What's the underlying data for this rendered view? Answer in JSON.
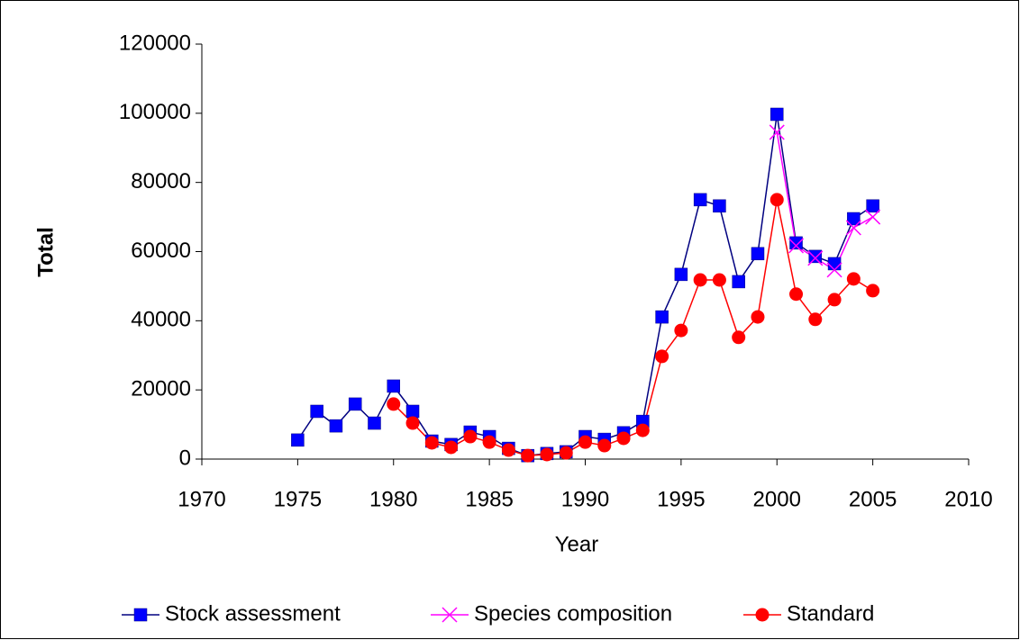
{
  "chart_data": {
    "type": "line",
    "x_label": "Year",
    "y_label": "Total",
    "x": [
      1975,
      1976,
      1977,
      1978,
      1979,
      1980,
      1981,
      1982,
      1983,
      1984,
      1985,
      1986,
      1987,
      1988,
      1989,
      1990,
      1991,
      1992,
      1993,
      1994,
      1995,
      1996,
      1997,
      1998,
      1999,
      2000,
      2001,
      2002,
      2003,
      2004,
      2005
    ],
    "series": [
      {
        "name": "Stock assessment",
        "color": "#0000ff",
        "line_color": "#000080",
        "marker": "square",
        "values": [
          5500,
          13800,
          9600,
          15900,
          10400,
          21100,
          13800,
          5200,
          4200,
          7800,
          6500,
          3100,
          1000,
          1600,
          2100,
          6500,
          5700,
          7600,
          10900,
          41100,
          53400,
          75000,
          73200,
          51300,
          59400,
          99700,
          62500,
          58600,
          56500,
          69500,
          73200
        ]
      },
      {
        "name": "Species composition",
        "color": "#ff00ff",
        "line_color": "#ff00ff",
        "marker": "x",
        "values": [
          null,
          null,
          null,
          null,
          null,
          null,
          null,
          null,
          null,
          null,
          null,
          null,
          null,
          null,
          null,
          null,
          null,
          null,
          null,
          null,
          null,
          null,
          null,
          null,
          null,
          94500,
          61700,
          58100,
          54700,
          66900,
          70000
        ]
      },
      {
        "name": "Standard",
        "color": "#ff0000",
        "line_color": "#ff0000",
        "marker": "circle",
        "values": [
          null,
          null,
          null,
          null,
          null,
          15900,
          10400,
          4700,
          3400,
          6500,
          4900,
          2600,
          1000,
          1300,
          1800,
          4900,
          3900,
          6000,
          8300,
          29700,
          37200,
          51800,
          51800,
          35200,
          41100,
          75000,
          47700,
          40400,
          46100,
          52100,
          48700
        ]
      }
    ],
    "xlim": [
      1970,
      2010
    ],
    "xticks": [
      1970,
      1975,
      1980,
      1985,
      1990,
      1995,
      2000,
      2005,
      2010
    ],
    "ylim": [
      0,
      120000
    ],
    "yticks": [
      0,
      20000,
      40000,
      60000,
      80000,
      100000,
      120000
    ],
    "grid": false,
    "legend": "bottom"
  }
}
